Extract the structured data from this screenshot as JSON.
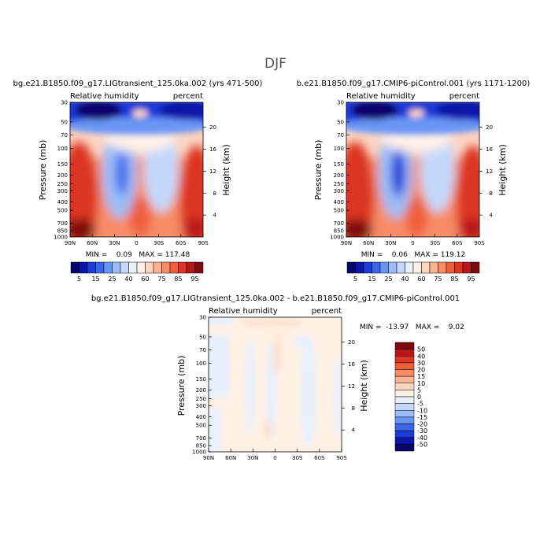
{
  "page_title": "DJF",
  "colors": {
    "rh_palette": [
      "#08066c",
      "#0b15a6",
      "#1c3bd8",
      "#3a66ee",
      "#6a95f5",
      "#9bbcf8",
      "#c4d8fb",
      "#e8f0fe",
      "#fff1e8",
      "#fdd5c0",
      "#fbb394",
      "#f78c66",
      "#ef5f3c",
      "#dc3523",
      "#b8171a",
      "#7e0a0c"
    ],
    "diff_palette": [
      "#08066c",
      "#0b15a6",
      "#1c3bd8",
      "#3a66ee",
      "#6a95f5",
      "#9bbcf8",
      "#c4d8fb",
      "#e8f0fe",
      "#fff0e4",
      "#fdd5c0",
      "#fbb394",
      "#f78c66",
      "#ef5f3c",
      "#dc3523",
      "#b8171a",
      "#7e0a0c"
    ]
  },
  "chart_data": [
    {
      "type": "heatmap",
      "title": "bg.e21.B1850.f09_g17.LIGtransient_125.0ka.002 (yrs 471-500)",
      "left_label": "Relative humidity",
      "right_label": "percent",
      "ylabel": "Pressure (mb)",
      "y2label": "Height (km)",
      "x_ticks": [
        "90N",
        "60N",
        "30N",
        "0",
        "30S",
        "60S",
        "90S"
      ],
      "y_ticks": [
        "30",
        "50",
        "70",
        "100",
        "150",
        "200",
        "250",
        "300",
        "400",
        "500",
        "700",
        "850",
        "1000"
      ],
      "y2_ticks": [
        "20",
        "16",
        "12",
        "8",
        "4"
      ],
      "stats": "MIN =    0.09   MAX = 117.48",
      "colorbar_labels": [
        "5",
        "15",
        "25",
        "40",
        "60",
        "75",
        "85",
        "95"
      ],
      "min": 0.09,
      "max": 117.48
    },
    {
      "type": "heatmap",
      "title": "b.e21.B1850.f09_g17.CMIP6-piControl.001 (yrs 1171-1200)",
      "left_label": "Relative humidity",
      "right_label": "percent",
      "ylabel": "Pressure (mb)",
      "y2label": "Height (km)",
      "x_ticks": [
        "90N",
        "60N",
        "30N",
        "0",
        "30S",
        "60S",
        "90S"
      ],
      "y_ticks": [
        "30",
        "50",
        "70",
        "100",
        "150",
        "200",
        "250",
        "300",
        "400",
        "500",
        "700",
        "850",
        "1000"
      ],
      "y2_ticks": [
        "20",
        "16",
        "12",
        "8",
        "4"
      ],
      "stats": "MIN =    0.06   MAX = 119.12",
      "colorbar_labels": [
        "5",
        "15",
        "25",
        "40",
        "60",
        "75",
        "85",
        "95"
      ],
      "min": 0.06,
      "max": 119.12
    },
    {
      "type": "heatmap",
      "title": "bg.e21.B1850.f09_g17.LIGtransient_125.0ka.002 - b.e21.B1850.f09_g17.CMIP6-piControl.001",
      "left_label": "Relative humidity",
      "right_label": "percent",
      "ylabel": "Pressure (mb)",
      "y2label": "Height (km)",
      "x_ticks": [
        "90N",
        "60N",
        "30N",
        "0",
        "30S",
        "60S",
        "90S"
      ],
      "y_ticks": [
        "30",
        "50",
        "70",
        "100",
        "150",
        "200",
        "250",
        "300",
        "400",
        "500",
        "700",
        "850",
        "1000"
      ],
      "y2_ticks": [
        "20",
        "16",
        "12",
        "8",
        "4"
      ],
      "stats": "MIN =  -13.97   MAX =    9.02",
      "colorbar_labels": [
        "50",
        "40",
        "30",
        "20",
        "15",
        "10",
        "5",
        "0",
        "-5",
        "-10",
        "-15",
        "-20",
        "-30",
        "-40",
        "-50"
      ],
      "min": -13.97,
      "max": 9.02
    }
  ]
}
